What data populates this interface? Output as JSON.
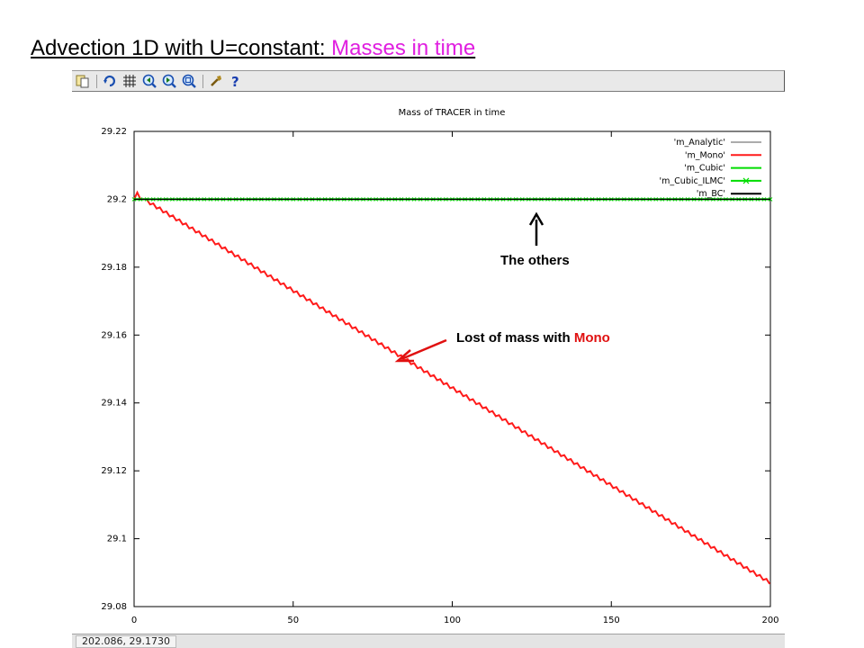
{
  "slide": {
    "title_main": "Advection 1D with U=constant: ",
    "title_highlight": "Masses in time"
  },
  "toolbar": {
    "icons": [
      "copy-icon",
      "replot-icon",
      "grid-icon",
      "zoom-prev-icon",
      "zoom-next-icon",
      "zoom-unzoom-icon",
      "config-icon",
      "help-icon"
    ]
  },
  "status": {
    "coords": "202.086, 29.1730"
  },
  "annotations": {
    "others": "The others",
    "mono_prefix": "Lost of mass with ",
    "mono_highlight": "Mono"
  },
  "colors": {
    "title_highlight": "#e01fe0",
    "annotation_arrow": "#e01010"
  },
  "chart_data": {
    "type": "line",
    "title": "Mass of TRACER in time",
    "xlabel": "",
    "ylabel": "",
    "xlim": [
      0,
      200
    ],
    "ylim": [
      29.08,
      29.22
    ],
    "xticks": [
      0,
      50,
      100,
      150,
      200
    ],
    "yticks": [
      29.08,
      29.1,
      29.12,
      29.14,
      29.16,
      29.18,
      29.2,
      29.22
    ],
    "ytick_labels": [
      "29.08",
      "29.1",
      "29.12",
      "29.14",
      "29.16",
      "29.18",
      "29.2",
      "29.22"
    ],
    "grid": false,
    "legend_position": "top-right",
    "series": [
      {
        "name": "'m_Analytic'",
        "color": "#909090",
        "x": [
          0,
          200
        ],
        "y": [
          29.2,
          29.2
        ]
      },
      {
        "name": "'m_Mono'",
        "color": "#ff1a1a",
        "x": [
          0,
          1,
          2,
          3,
          200
        ],
        "y": [
          29.2,
          29.202,
          29.2,
          29.199,
          29.087
        ],
        "oscillating": true
      },
      {
        "name": "'m_Cubic'",
        "color": "#00dd00",
        "x": [
          0,
          200
        ],
        "y": [
          29.2,
          29.2
        ]
      },
      {
        "name": "'m_Cubic_ILMC'",
        "color": "#00dd00",
        "marker": "x",
        "x": [
          0,
          200
        ],
        "y": [
          29.2,
          29.2
        ]
      },
      {
        "name": "'m_BC'",
        "color": "#000000",
        "x": [
          0,
          200
        ],
        "y": [
          29.2,
          29.2
        ]
      }
    ]
  }
}
